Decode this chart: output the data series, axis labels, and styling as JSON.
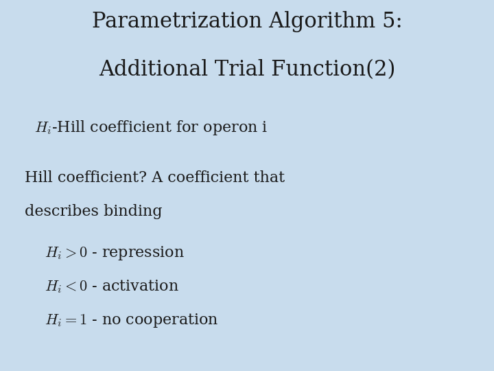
{
  "title_line1": "Parametrization Algorithm 5:",
  "title_line2": "Additional Trial Function(2)",
  "background_color": "#c8dced",
  "title_fontsize": 22,
  "title_color": "#1a1a1a",
  "body_fontsize": 16,
  "math_fontsize": 16,
  "bullet_fontsize": 16,
  "subtitle": "$H_i$-Hill coefficient for operon i",
  "para_line1": "Hill coefficient? A coefficient that",
  "para_line2": "describes binding",
  "bullet1": "$H_i > 0$ - repression",
  "bullet2": "$H_i < 0$ - activation",
  "bullet3": "$H_i = 1$ - no cooperation"
}
